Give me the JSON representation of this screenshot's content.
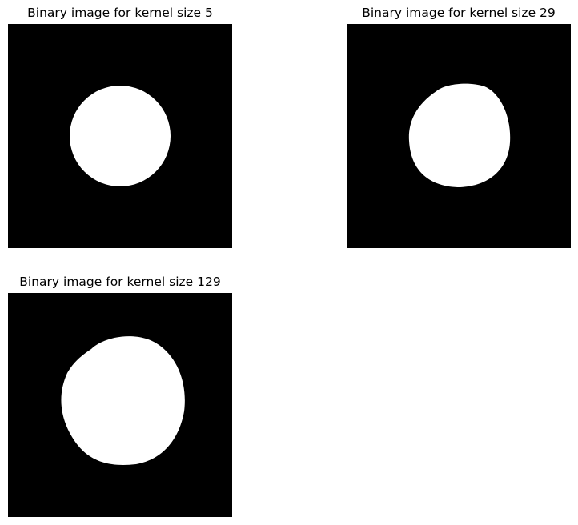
{
  "panels": [
    {
      "title": "Binary image for kernel size 5"
    },
    {
      "title": "Binary image for kernel size 29"
    },
    {
      "title": "Binary image for kernel size 129"
    }
  ],
  "colors": {
    "background": "#000000",
    "foreground": "#ffffff"
  }
}
